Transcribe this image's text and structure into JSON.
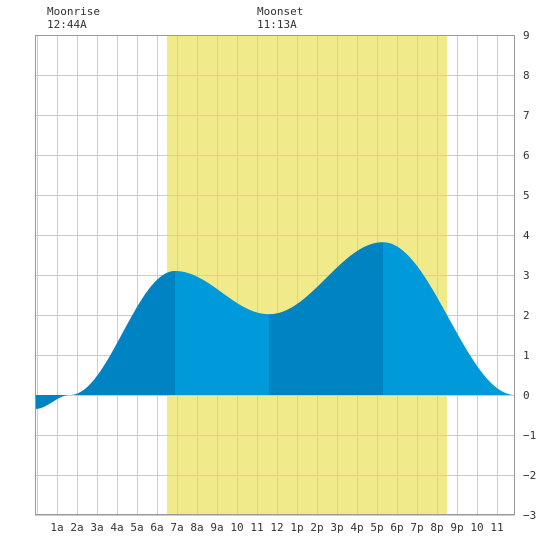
{
  "chart_data": {
    "type": "area",
    "title": "",
    "xlabel": "",
    "ylabel": "",
    "x_unit": "hours since midnight",
    "xlim": [
      -0.1,
      23.9
    ],
    "ylim": [
      -3,
      9
    ],
    "grid": true,
    "x_tick_labels": [
      "1a",
      "2a",
      "3a",
      "4a",
      "5a",
      "6a",
      "7a",
      "8a",
      "9a",
      "10",
      "11",
      "12",
      "1p",
      "2p",
      "3p",
      "4p",
      "5p",
      "6p",
      "7p",
      "8p",
      "9p",
      "10",
      "11"
    ],
    "y_tick_labels": [
      "9",
      "8",
      "7",
      "6",
      "5",
      "4",
      "3",
      "2",
      "1",
      "0",
      "−1",
      "−2",
      "−3"
    ],
    "daylight": {
      "start": 6.5,
      "end": 20.5,
      "color": "#f0ea8a"
    },
    "moon_events": [
      {
        "label": "Moonrise",
        "time": "12:44A",
        "x": 0.73
      },
      {
        "label": "Moonset",
        "time": "11:13A",
        "x": 11.22
      }
    ],
    "tide_extrema": [
      {
        "x": -0.1,
        "y": -0.35
      },
      {
        "x": 1.65,
        "y": 0.0
      },
      {
        "x": 6.9,
        "y": 3.1
      },
      {
        "x": 11.6,
        "y": 2.02
      },
      {
        "x": 17.3,
        "y": 3.82
      },
      {
        "x": 23.9,
        "y": 0.0
      }
    ],
    "band_boundaries": [
      0.0,
      1.75,
      6.9,
      11.6,
      17.3,
      23.9
    ],
    "colors": {
      "dark": "#0083c2",
      "light": "#0099d9",
      "grid": "#cccccc",
      "background": "#ffffff"
    }
  }
}
